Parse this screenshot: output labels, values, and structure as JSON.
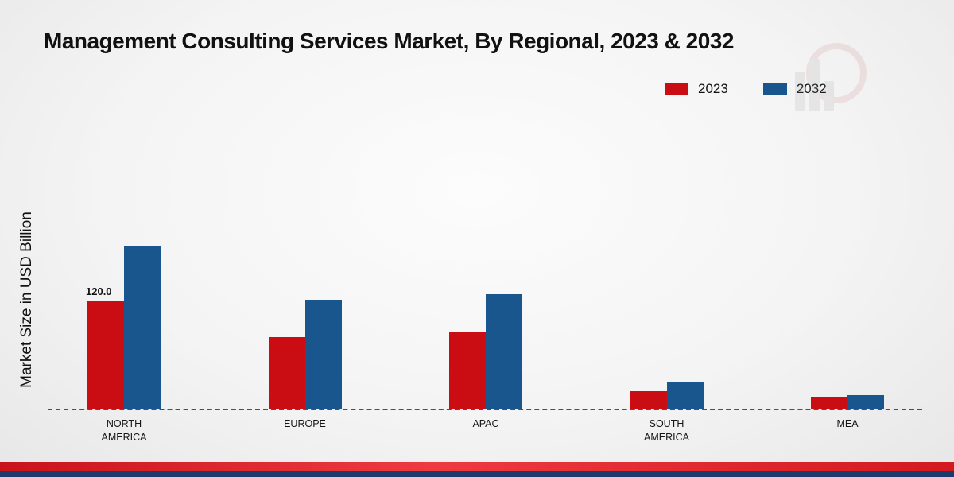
{
  "chart_data": {
    "type": "bar",
    "title": "Management Consulting Services Market, By Regional, 2023 & 2032",
    "ylabel": "Market Size in USD Billion",
    "xlabel": "",
    "categories": [
      "NORTH AMERICA",
      "EUROPE",
      "APAC",
      "SOUTH AMERICA",
      "MEA"
    ],
    "category_display_labels": [
      "NORTH\nAMERICA",
      "EUROPE",
      "APAC",
      "SOUTH\nAMERICA",
      "MEA"
    ],
    "series": [
      {
        "name": "2023",
        "color": "#c90d12",
        "values": [
          120.0,
          80,
          85,
          20,
          14
        ]
      },
      {
        "name": "2032",
        "color": "#1a568e",
        "values": [
          181,
          121,
          127,
          30,
          16
        ]
      }
    ],
    "ylim": [
      0,
      200
    ],
    "grid": false,
    "baseline_style": "dashed",
    "legend_position": "top-right",
    "annotations": [
      {
        "category_index": 0,
        "series_index": 0,
        "text": "120.0"
      }
    ]
  },
  "footer": {
    "red_color": "#dd1820",
    "navy_color": "#1c3a6b"
  },
  "watermark": {
    "name": "market-research-logo"
  }
}
